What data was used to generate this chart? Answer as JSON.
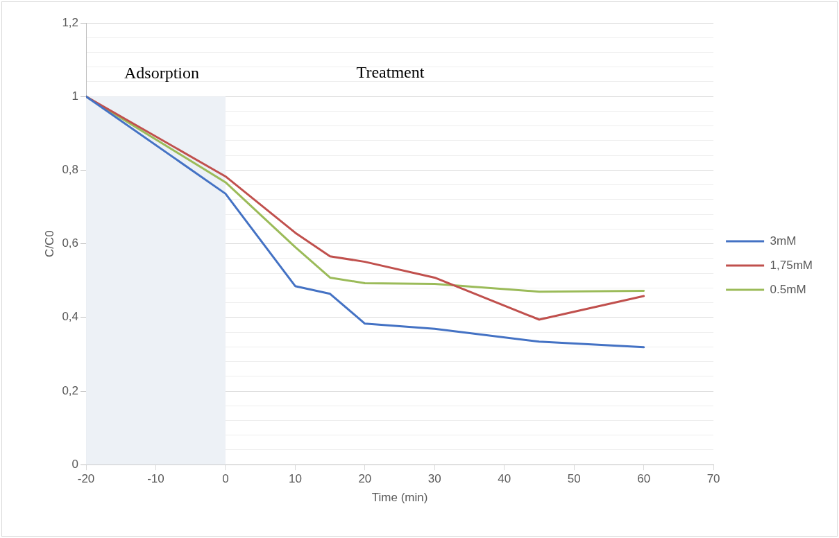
{
  "chart_data": {
    "type": "line",
    "xlabel": "Time (min)",
    "ylabel": "C/C0",
    "x": [
      -20,
      0,
      10,
      15,
      20,
      30,
      45,
      60
    ],
    "series": [
      {
        "name": "3mM",
        "color": "#4472c4",
        "values": [
          1,
          0.736,
          0.485,
          0.464,
          0.383,
          0.369,
          0.334,
          0.319
        ]
      },
      {
        "name": "1,75mM",
        "color": "#c0504d",
        "values": [
          1,
          0.783,
          0.63,
          0.566,
          0.551,
          0.508,
          0.394,
          0.458
        ]
      },
      {
        "name": "0.5mM",
        "color": "#9bbb59",
        "values": [
          1,
          0.767,
          0.591,
          0.508,
          0.493,
          0.491,
          0.47,
          0.472
        ]
      }
    ],
    "xlim": [
      -20,
      70
    ],
    "xticks": [
      -20,
      -10,
      0,
      10,
      20,
      30,
      40,
      50,
      60,
      70
    ],
    "ylim": [
      0,
      1.2
    ],
    "yticks": [
      0,
      {
        "value": 0.04,
        "label": null
      },
      {
        "value": 0.08,
        "label": null
      },
      {
        "value": 0.12,
        "label": null
      },
      {
        "value": 0.16,
        "label": null
      },
      {
        "value": 0.2,
        "label": "0,2"
      },
      {
        "value": 0.24,
        "label": null
      },
      {
        "value": 0.28,
        "label": null
      },
      {
        "value": 0.32,
        "label": null
      },
      {
        "value": 0.36,
        "label": null
      },
      {
        "value": 0.4,
        "label": "0,4"
      },
      {
        "value": 0.44,
        "label": null
      },
      {
        "value": 0.48,
        "label": null
      },
      {
        "value": 0.52,
        "label": null
      },
      {
        "value": 0.56,
        "label": null
      },
      {
        "value": 0.6,
        "label": "0,6"
      },
      {
        "value": 0.64,
        "label": null
      },
      {
        "value": 0.68,
        "label": null
      },
      {
        "value": 0.72,
        "label": null
      },
      {
        "value": 0.76,
        "label": null
      },
      {
        "value": 0.8,
        "label": "0,8"
      },
      {
        "value": 0.84,
        "label": null
      },
      {
        "value": 0.88,
        "label": null
      },
      {
        "value": 0.92,
        "label": null
      },
      {
        "value": 0.96,
        "label": null
      },
      1,
      {
        "value": 1.04,
        "label": null
      },
      {
        "value": 1.08,
        "label": null
      },
      {
        "value": 1.12,
        "label": null
      },
      {
        "value": 1.16,
        "label": null
      },
      {
        "value": 1.2,
        "label": "1,2"
      }
    ],
    "grid": "y",
    "legend": "right",
    "marker": "none",
    "line_style": "solid",
    "bands": [
      {
        "axis": "x",
        "from": -20,
        "to": 0,
        "label": "Adsorption",
        "color": "#edf1f6"
      }
    ],
    "annotations": [
      "Treatment"
    ]
  }
}
